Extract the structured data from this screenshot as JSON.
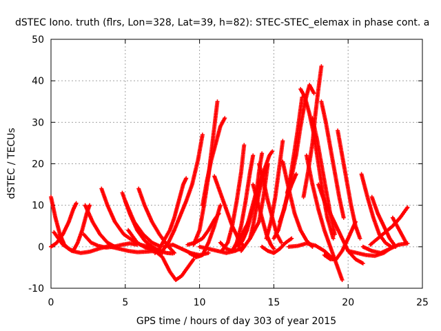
{
  "chart_data": {
    "type": "scatter",
    "title": "dSTEC Iono. truth (flrs, Lon=328, Lat=39, h=82): STEC-STEC_elemax in phase cont. a",
    "xlabel": "GPS time / hours of day 303 of year 2015",
    "ylabel": "dSTEC  / TECUs",
    "xlim": [
      0,
      25
    ],
    "ylim": [
      -10,
      50
    ],
    "xticks": [
      "0",
      "5",
      "10",
      "15",
      "20",
      "25"
    ],
    "yticks": [
      "-10",
      "0",
      "10",
      "20",
      "30",
      "40",
      "50"
    ],
    "grid": true,
    "marker": "plus",
    "color": "#ff0000",
    "series": [
      {
        "x": [
          0,
          0.3,
          0.6,
          0.9,
          1.2,
          1.5
        ],
        "y": [
          12,
          7,
          3,
          0.5,
          -0.5,
          -1
        ]
      },
      {
        "x": [
          0,
          0.4,
          0.8,
          1.2,
          1.5,
          1.7
        ],
        "y": [
          0,
          1,
          3,
          6,
          9,
          10.5
        ]
      },
      {
        "x": [
          0.2,
          0.8,
          1.4,
          2,
          2.6,
          3.2,
          4
        ],
        "y": [
          3.5,
          0.5,
          -1,
          -1.5,
          -1.2,
          -0.5,
          0.3
        ]
      },
      {
        "x": [
          1.5,
          1.8,
          2.1,
          2.4,
          2.6
        ],
        "y": [
          -1,
          1,
          4,
          8,
          10
        ]
      },
      {
        "x": [
          2.3,
          2.8,
          3.3,
          3.8,
          4.3
        ],
        "y": [
          10,
          6,
          3,
          1,
          0
        ]
      },
      {
        "x": [
          2.2,
          2.7,
          3.2,
          3.7,
          4.2,
          4.8,
          5.3,
          5.8
        ],
        "y": [
          3,
          1,
          0.2,
          -0.2,
          0,
          0.5,
          0.8,
          0.5
        ]
      },
      {
        "x": [
          3.4,
          3.8,
          4.3,
          4.9,
          5.5,
          6,
          6.6
        ],
        "y": [
          14,
          10,
          6,
          3,
          1.5,
          0.5,
          0
        ]
      },
      {
        "x": [
          4,
          4.6,
          5.2,
          5.8,
          6.4,
          7
        ],
        "y": [
          0,
          -0.5,
          -1,
          -1.3,
          -1.2,
          -1
        ]
      },
      {
        "x": [
          4.8,
          5.3,
          5.8,
          6.3,
          6.8,
          7.3,
          7.8,
          8.2
        ],
        "y": [
          13,
          8,
          4,
          1.5,
          0,
          -1,
          -1.5,
          -1.6
        ]
      },
      {
        "x": [
          5,
          5.6,
          6.2,
          6.8,
          7.4
        ],
        "y": [
          11,
          6,
          3,
          1,
          0
        ]
      },
      {
        "x": [
          5.2,
          5.8,
          6.4,
          7,
          7.5
        ],
        "y": [
          4,
          1,
          -0.3,
          -1,
          -1.5
        ]
      },
      {
        "x": [
          5.9,
          6.3,
          6.8,
          7.3,
          7.8,
          8.3
        ],
        "y": [
          14,
          10,
          6,
          3,
          0.5,
          -1.5
        ]
      },
      {
        "x": [
          6.5,
          7,
          7.5,
          8,
          8.4,
          8.8,
          9.2,
          9.6
        ],
        "y": [
          0,
          -1,
          -2.5,
          -6,
          -8,
          -7,
          -5,
          -3
        ]
      },
      {
        "x": [
          7,
          7.3,
          7.6,
          8,
          8.3,
          8.6,
          8.9,
          9.1
        ],
        "y": [
          -1.5,
          -0.5,
          1.5,
          4,
          7,
          11,
          15,
          16.5
        ]
      },
      {
        "x": [
          7.5,
          7.9,
          8.3,
          8.7,
          9.1,
          9.5,
          9.9,
          10.2
        ],
        "y": [
          -1,
          1,
          4,
          7.5,
          11,
          15,
          21,
          27
        ]
      },
      {
        "x": [
          7.6,
          8.2,
          8.8,
          9.4,
          10,
          10.6
        ],
        "y": [
          0,
          0.5,
          -0.5,
          -1.5,
          -2,
          -1.5
        ]
      },
      {
        "x": [
          9.2,
          9.7,
          10.2,
          10.6,
          11,
          11.3
        ],
        "y": [
          0.5,
          1,
          2,
          4,
          6.5,
          8
        ]
      },
      {
        "x": [
          9.3,
          9.8,
          10.2,
          10.6,
          11,
          11.4
        ],
        "y": [
          -1.5,
          -2.5,
          -2,
          1,
          5,
          10
        ]
      },
      {
        "x": [
          9.6,
          10,
          10.3,
          10.6,
          10.9,
          11.2
        ],
        "y": [
          0.5,
          4,
          10,
          17,
          26,
          35
        ]
      },
      {
        "x": [
          10.2,
          10.5,
          10.8,
          11.1,
          11.4,
          11.7
        ],
        "y": [
          10,
          16,
          21,
          25,
          29,
          31
        ]
      },
      {
        "x": [
          11,
          11.3,
          11.6,
          11.9,
          12.2,
          12.6,
          13
        ],
        "y": [
          17,
          14,
          11,
          8,
          5,
          2,
          0
        ]
      },
      {
        "x": [
          10,
          10.6,
          11.2,
          11.8,
          12.4,
          13
        ],
        "y": [
          0,
          -0.5,
          -1,
          -1.5,
          -1,
          0
        ]
      },
      {
        "x": [
          11.4,
          11.8,
          12.2,
          12.6,
          13,
          13.3
        ],
        "y": [
          1,
          -0.5,
          -1,
          1,
          4,
          6
        ]
      },
      {
        "x": [
          11.5,
          11.9,
          12.2,
          12.5,
          12.8,
          13
        ],
        "y": [
          -1,
          1,
          5,
          11,
          18,
          24.5
        ]
      },
      {
        "x": [
          12.2,
          12.5,
          12.8,
          13.1,
          13.4,
          13.6
        ],
        "y": [
          -1,
          1,
          5,
          11,
          18,
          22
        ]
      },
      {
        "x": [
          12.6,
          12.9,
          13.2,
          13.5,
          13.8,
          14,
          14.2
        ],
        "y": [
          0,
          1.5,
          4,
          8,
          12,
          18,
          22.5
        ]
      },
      {
        "x": [
          12.8,
          13.1,
          13.4,
          13.7,
          14,
          14.3,
          14.6
        ],
        "y": [
          -1,
          0.5,
          2,
          4,
          6,
          12,
          20
        ]
      },
      {
        "x": [
          13.4,
          13.6,
          13.8,
          14,
          14.2,
          14.4,
          14.6
        ],
        "y": [
          2,
          5,
          9,
          13,
          16,
          18,
          20
        ]
      },
      {
        "x": [
          13.2,
          13.5,
          13.8,
          14.1,
          14.4,
          14.7,
          14.9
        ],
        "y": [
          5,
          9,
          13,
          16,
          19,
          22,
          23
        ]
      },
      {
        "x": [
          13.6,
          13.9,
          14.2,
          14.5,
          14.8,
          15
        ],
        "y": [
          15,
          11,
          7,
          3,
          0.5,
          -0.5
        ]
      },
      {
        "x": [
          14,
          14.3,
          14.6,
          14.9,
          15.2,
          15.5
        ],
        "y": [
          20,
          16,
          11,
          7,
          3,
          1
        ]
      },
      {
        "x": [
          14.2,
          14.6,
          15,
          15.4,
          15.8,
          16.2
        ],
        "y": [
          0,
          -1,
          -1.5,
          -0.5,
          1,
          2
        ]
      },
      {
        "x": [
          14.5,
          14.8,
          15.1,
          15.4,
          15.6
        ],
        "y": [
          2,
          6,
          12,
          20,
          25.5
        ]
      },
      {
        "x": [
          15,
          15.3,
          15.6,
          15.9,
          16.2,
          16.5
        ],
        "y": [
          2,
          4,
          8,
          12,
          15,
          17.5
        ]
      },
      {
        "x": [
          15.4,
          15.7,
          16,
          16.3,
          16.6,
          16.9
        ],
        "y": [
          6,
          9,
          14,
          21,
          28,
          36
        ]
      },
      {
        "x": [
          15.6,
          16,
          16.4,
          16.8,
          17.2,
          17.6
        ],
        "y": [
          20.5,
          14,
          8,
          4,
          1.5,
          0
        ]
      },
      {
        "x": [
          15.9,
          16.2,
          16.5,
          16.8,
          17.1,
          17.4,
          17.7
        ],
        "y": [
          13,
          17,
          22,
          29,
          35,
          39,
          37
        ]
      },
      {
        "x": [
          16,
          16.6,
          17.2,
          17.8,
          18.4,
          19
        ],
        "y": [
          0,
          0.2,
          0.8,
          0.3,
          -1,
          -3
        ]
      },
      {
        "x": [
          16.8,
          17.1,
          17.4,
          17.7,
          18,
          18.3,
          18.6,
          19
        ],
        "y": [
          38,
          36,
          32,
          27,
          20,
          13,
          7,
          2
        ]
      },
      {
        "x": [
          17,
          17.3,
          17.6,
          17.8,
          18,
          18.2
        ],
        "y": [
          12,
          18,
          25,
          32,
          38,
          43.5
        ]
      },
      {
        "x": [
          17.2,
          17.6,
          18,
          18.4,
          18.8,
          19.2,
          19.6
        ],
        "y": [
          22,
          15,
          9,
          4,
          0,
          -4,
          -8
        ]
      },
      {
        "x": [
          17.6,
          17.9,
          18.2,
          18.5,
          18.8,
          19.1
        ],
        "y": [
          31,
          26,
          20,
          14,
          8,
          3
        ]
      },
      {
        "x": [
          18.2,
          18.5,
          18.8,
          19.1,
          19.4,
          19.7
        ],
        "y": [
          35,
          30,
          24,
          18,
          12,
          7
        ]
      },
      {
        "x": [
          18,
          18.4,
          18.8,
          19.2,
          19.6,
          20,
          20.5,
          21
        ],
        "y": [
          15,
          11,
          8,
          5,
          2,
          -1,
          -3,
          -4
        ]
      },
      {
        "x": [
          18.4,
          18.8,
          19.2,
          19.6,
          20,
          20.5
        ],
        "y": [
          -2,
          -3,
          -3,
          -1,
          2,
          6
        ]
      },
      {
        "x": [
          19.3,
          19.6,
          19.9,
          20.2,
          20.5,
          20.8
        ],
        "y": [
          28,
          22,
          16,
          10,
          5,
          2
        ]
      },
      {
        "x": [
          20.9,
          21.3,
          21.7,
          22.1,
          22.5,
          22.9
        ],
        "y": [
          17.5,
          12,
          7,
          3,
          1,
          0
        ]
      },
      {
        "x": [
          21,
          21.6,
          22.2,
          22.8,
          23.4,
          24
        ],
        "y": [
          0,
          -1,
          -1.5,
          -0.5,
          0.5,
          0.8
        ]
      },
      {
        "x": [
          20,
          20.6,
          21.2,
          21.8,
          22.4,
          23
        ],
        "y": [
          -1,
          -1.5,
          -2,
          -2.2,
          -1.5,
          0
        ]
      },
      {
        "x": [
          21.5,
          22,
          22.5,
          23,
          23.5,
          24
        ],
        "y": [
          0.5,
          2,
          3.5,
          5,
          7,
          9.5
        ]
      },
      {
        "x": [
          21.6,
          22,
          22.4,
          22.8,
          23.2
        ],
        "y": [
          12,
          8,
          5,
          2,
          0
        ]
      },
      {
        "x": [
          23,
          23.3,
          23.6,
          23.9
        ],
        "y": [
          7,
          5,
          3,
          1
        ]
      }
    ]
  }
}
